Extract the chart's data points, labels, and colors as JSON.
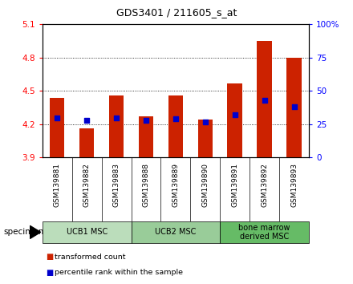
{
  "title": "GDS3401 / 211605_s_at",
  "samples": [
    "GSM139881",
    "GSM139882",
    "GSM139883",
    "GSM139888",
    "GSM139889",
    "GSM139890",
    "GSM139891",
    "GSM139892",
    "GSM139893"
  ],
  "transformed_counts": [
    4.44,
    4.16,
    4.46,
    4.27,
    4.46,
    4.24,
    4.57,
    4.95,
    4.8
  ],
  "percentile_ranks": [
    30,
    28,
    30,
    28,
    29,
    27,
    32,
    43,
    38
  ],
  "ylim_left": [
    3.9,
    5.1
  ],
  "ylim_right": [
    0,
    100
  ],
  "yticks_left": [
    3.9,
    4.2,
    4.5,
    4.8,
    5.1
  ],
  "yticks_right": [
    0,
    25,
    50,
    75,
    100
  ],
  "ytick_labels_left": [
    "3.9",
    "4.2",
    "4.5",
    "4.8",
    "5.1"
  ],
  "ytick_labels_right": [
    "0",
    "25",
    "50",
    "75",
    "100%"
  ],
  "bar_color": "#cc2200",
  "dot_color": "#0000cc",
  "base_value": 3.9,
  "groups": [
    {
      "label": "UCB1 MSC",
      "indices": [
        0,
        1,
        2
      ],
      "color": "#bbddbb"
    },
    {
      "label": "UCB2 MSC",
      "indices": [
        3,
        4,
        5
      ],
      "color": "#99cc99"
    },
    {
      "label": "bone marrow\nderived MSC",
      "indices": [
        6,
        7,
        8
      ],
      "color": "#66bb66"
    }
  ],
  "specimen_label": "specimen",
  "legend_items": [
    {
      "label": "transformed count",
      "color": "#cc2200"
    },
    {
      "label": "percentile rank within the sample",
      "color": "#0000cc"
    }
  ],
  "bg_color": "#d8d8d8",
  "plot_bg": "#ffffff"
}
